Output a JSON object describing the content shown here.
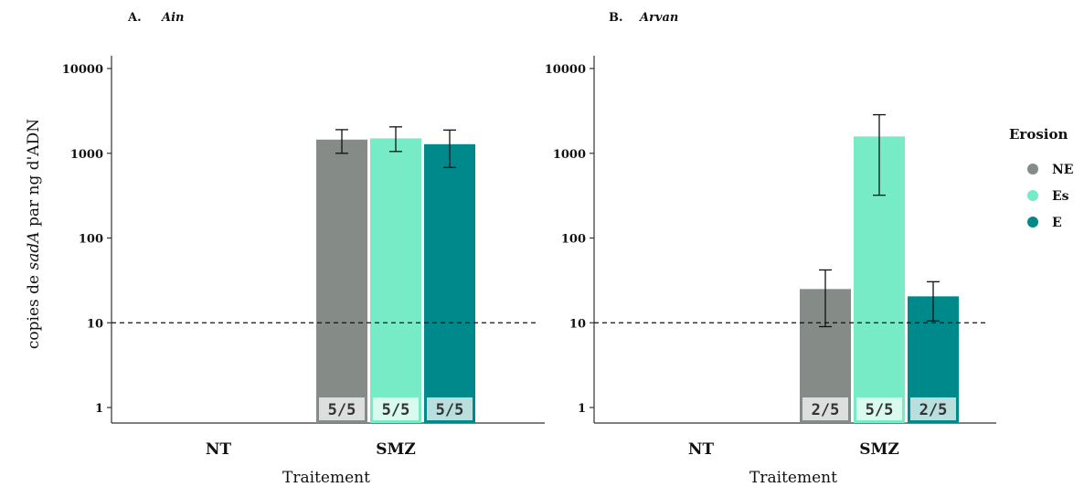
{
  "chart_data": {
    "type": "bar",
    "scale": "log",
    "ylim": [
      0.5,
      20000
    ],
    "yticks": [
      1,
      10,
      100,
      1000,
      10000
    ],
    "ytick_labels": [
      "1",
      "10",
      "100",
      "1000",
      "10000"
    ],
    "threshold": 10,
    "ylabel_prefix": "copies de ",
    "ylabel_gene": "sadA",
    "ylabel_suffix": " par ng d'ADN",
    "xlabel": "Traitement",
    "categories": [
      "NT",
      "SMZ"
    ],
    "legend": {
      "title": "Erosion",
      "position": "right",
      "items": [
        {
          "name": "NE",
          "color": "#858c88"
        },
        {
          "name": "Es",
          "color": "#76ebc5"
        },
        {
          "name": "E",
          "color": "#00898a"
        }
      ]
    },
    "panels": [
      {
        "label": "A.",
        "name": "Ain",
        "bars": [
          {
            "category": "SMZ",
            "series": "NE",
            "value": 1450,
            "err_low": 1000,
            "err_high": 1900,
            "count": "5/5"
          },
          {
            "category": "SMZ",
            "series": "Es",
            "value": 1500,
            "err_low": 1050,
            "err_high": 2050,
            "count": "5/5"
          },
          {
            "category": "SMZ",
            "series": "E",
            "value": 1280,
            "err_low": 680,
            "err_high": 1880,
            "count": "5/5"
          }
        ]
      },
      {
        "label": "B.",
        "name": "Arvan",
        "bars": [
          {
            "category": "SMZ",
            "series": "NE",
            "value": 25,
            "err_low": 9,
            "err_high": 42,
            "count": "2/5"
          },
          {
            "category": "SMZ",
            "series": "Es",
            "value": 1580,
            "err_low": 320,
            "err_high": 2850,
            "count": "5/5"
          },
          {
            "category": "SMZ",
            "series": "E",
            "value": 20.5,
            "err_low": 10.5,
            "err_high": 30.5,
            "count": "2/5"
          }
        ]
      }
    ]
  }
}
